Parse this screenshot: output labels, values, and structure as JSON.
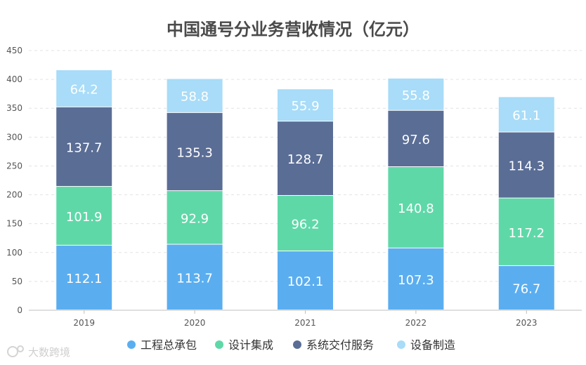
{
  "chart_data": {
    "type": "bar",
    "stacked": true,
    "title": "中国通号分业务营收情况（亿元）",
    "categories": [
      "2019",
      "2020",
      "2021",
      "2022",
      "2023"
    ],
    "series": [
      {
        "name": "工程总承包",
        "color": "#5aaef0",
        "values": [
          112.1,
          113.7,
          102.1,
          107.3,
          76.7
        ],
        "labels": [
          "112.1",
          "113.7",
          "102.1",
          "107.3",
          "76.7"
        ]
      },
      {
        "name": "设计集成",
        "color": "#5fd8a8",
        "values": [
          101.9,
          92.9,
          96.2,
          140.8,
          117.2
        ],
        "labels": [
          "101.9",
          "92.9",
          "96.2",
          "140.8",
          "117.2"
        ]
      },
      {
        "name": "系统交付服务",
        "color": "#5a6d95",
        "values": [
          137.7,
          135.3,
          128.7,
          97.6,
          114.3
        ],
        "labels": [
          "137.7",
          "135.3",
          "128.7",
          "97.6",
          "114.3"
        ]
      },
      {
        "name": "设备制造",
        "color": "#a8dcf8",
        "values": [
          64.2,
          58.8,
          55.9,
          55.8,
          61.1
        ],
        "labels": [
          "64.2",
          "58.8",
          "55.9",
          "55.8",
          "61.1"
        ]
      }
    ],
    "ylim": [
      0,
      450
    ],
    "yticks": [
      "0",
      "50",
      "100",
      "150",
      "200",
      "250",
      "300",
      "350",
      "400",
      "450"
    ],
    "grid": true,
    "legend": "bottom"
  },
  "watermark": "大数跨境"
}
